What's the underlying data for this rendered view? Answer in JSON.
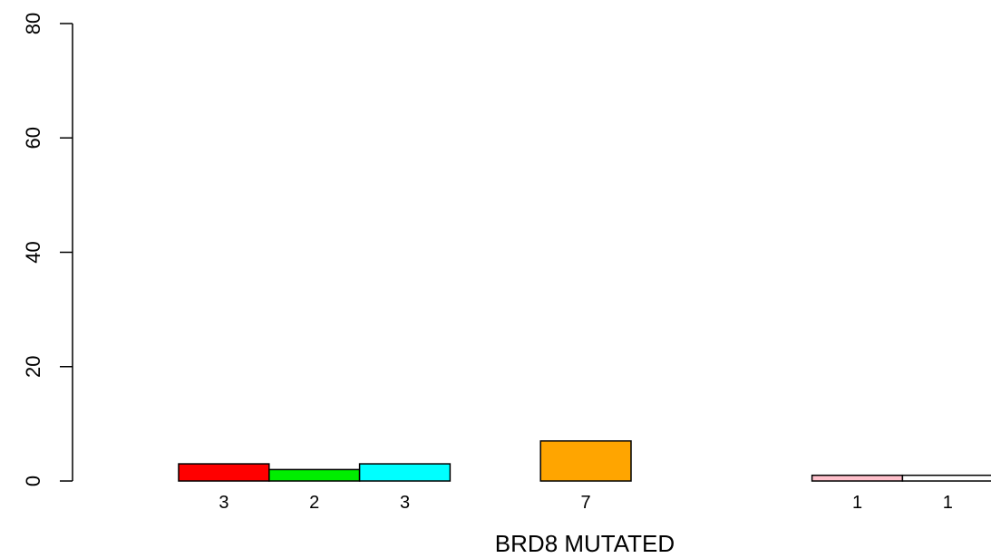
{
  "chart_data": {
    "type": "bar",
    "xlabel": "BRD8 MUTATED",
    "ylabel": "",
    "title": "",
    "ylim": [
      0,
      80
    ],
    "yticks": [
      0,
      20,
      40,
      60,
      80
    ],
    "grid": false,
    "legend": "none",
    "bars": [
      {
        "value": 3,
        "label": "3",
        "color": "#ff0000"
      },
      {
        "value": 2,
        "label": "2",
        "color": "#00ee00"
      },
      {
        "value": 3,
        "label": "3",
        "color": "#00ffff"
      },
      {
        "value": 0,
        "label": "",
        "color": "#0000ff"
      },
      {
        "value": 7,
        "label": "7",
        "color": "#ffa500"
      },
      {
        "value": 0,
        "label": "",
        "color": "#a020f0"
      },
      {
        "value": 0,
        "label": "",
        "color": "#ffff00"
      },
      {
        "value": 1,
        "label": "1",
        "color": "#ffc0cb"
      },
      {
        "value": 1,
        "label": "1",
        "color": "#ffffff"
      }
    ]
  }
}
